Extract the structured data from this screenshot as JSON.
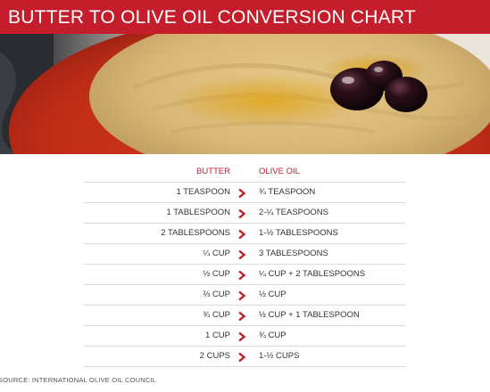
{
  "title": "BUTTER TO OLIVE OIL CONVERSION CHART",
  "colors": {
    "accent": "#c41e2c",
    "text": "#333333",
    "rule": "#dcdcdc"
  },
  "table": {
    "headers": {
      "butter": "BUTTER",
      "olive_oil": "OLIVE OIL"
    },
    "rows": [
      {
        "butter": "1 TEASPOON",
        "olive_oil": "¾ TEASPOON"
      },
      {
        "butter": "1 TABLESPOON",
        "olive_oil": "2-¼ TEASPOONS"
      },
      {
        "butter": "2 TABLESPOONS",
        "olive_oil": "1-½ TABLESPOONS"
      },
      {
        "butter": "¼ CUP",
        "olive_oil": "3 TABLESPOONS"
      },
      {
        "butter": "½ CUP",
        "olive_oil": "¼ CUP + 2 TABLESPOONS"
      },
      {
        "butter": "⅔ CUP",
        "olive_oil": "½ CUP"
      },
      {
        "butter": "¾ CUP",
        "olive_oil": "½ CUP + 1 TABLESPOON"
      },
      {
        "butter": "1 CUP",
        "olive_oil": "¾ CUP"
      },
      {
        "butter": "2 CUPS",
        "olive_oil": "1-½ CUPS"
      }
    ],
    "arrow_icon": "chevron-right-icon"
  },
  "source": "SOURCE: INTERNATIONAL OLIVE OIL COUNCIL"
}
